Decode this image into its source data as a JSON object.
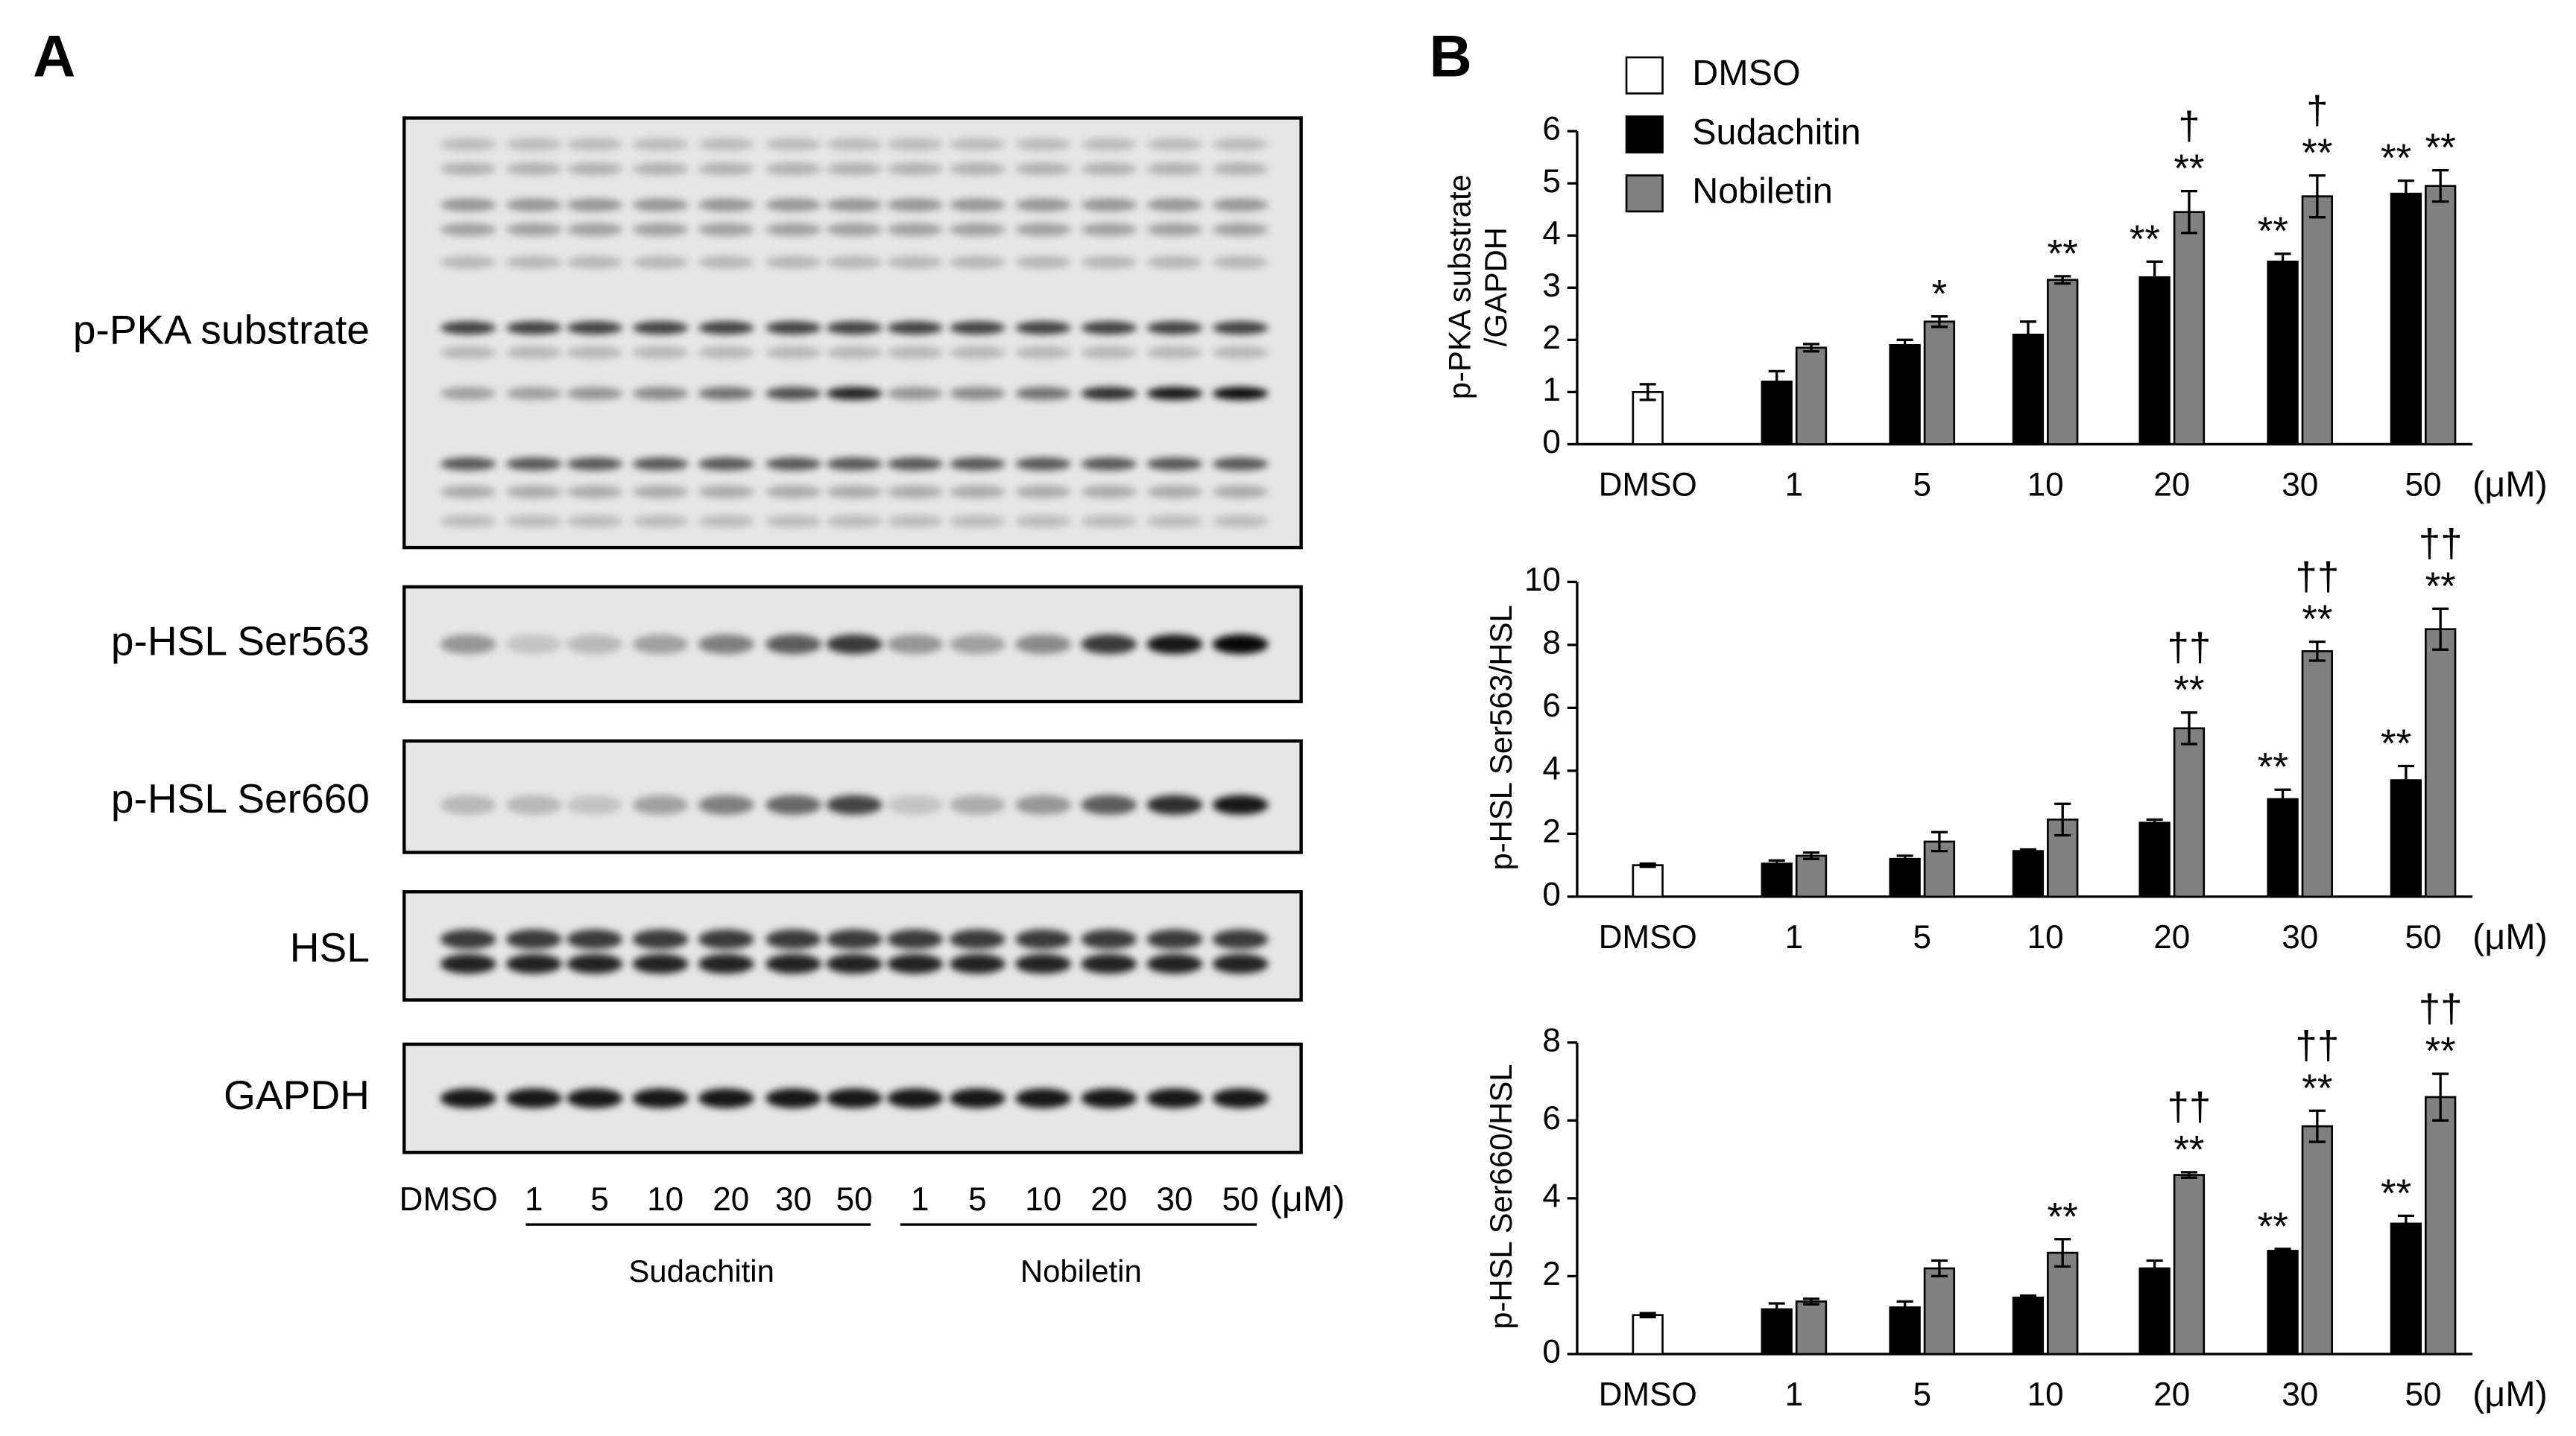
{
  "panel_a": {
    "label": "A",
    "blots": [
      "p-PKA substrate",
      "p-HSL Ser563",
      "p-HSL Ser660",
      "HSL",
      "GAPDH"
    ],
    "lanes": [
      "DMSO",
      "1",
      "5",
      "10",
      "20",
      "30",
      "50",
      "1",
      "5",
      "10",
      "20",
      "30",
      "50"
    ],
    "unit": "(μM)",
    "groups": [
      "Sudachitin",
      "Nobiletin"
    ]
  },
  "panel_b": {
    "label": "B"
  },
  "chart_data": [
    {
      "type": "bar",
      "ylabel": [
        "p-PKA substrate",
        "/GAPDH"
      ],
      "categories": [
        "DMSO",
        "1",
        "5",
        "10",
        "20",
        "30",
        "50"
      ],
      "x_unit": "(μM)",
      "ylim": [
        0,
        6
      ],
      "yticks": [
        0,
        1,
        2,
        3,
        4,
        5,
        6
      ],
      "legend": "top-left",
      "series": [
        {
          "name": "DMSO",
          "color": "#ffffff",
          "values": [
            1.0,
            null,
            null,
            null,
            null,
            null,
            null
          ],
          "errors": [
            0.15,
            null,
            null,
            null,
            null,
            null,
            null
          ],
          "annotations": [
            null,
            null,
            null,
            null,
            null,
            null,
            null
          ]
        },
        {
          "name": "Sudachitin",
          "color": "#000000",
          "values": [
            null,
            1.2,
            1.9,
            2.1,
            3.2,
            3.5,
            4.8
          ],
          "errors": [
            null,
            0.2,
            0.1,
            0.25,
            0.3,
            0.15,
            0.25
          ],
          "annotations": [
            null,
            null,
            null,
            null,
            [
              "**"
            ],
            [
              "**"
            ],
            [
              "**"
            ]
          ]
        },
        {
          "name": "Nobiletin",
          "color": "#808080",
          "values": [
            null,
            1.85,
            2.35,
            3.15,
            4.45,
            4.75,
            4.95
          ],
          "errors": [
            null,
            0.07,
            0.1,
            0.07,
            0.4,
            0.4,
            0.3
          ],
          "annotations": [
            null,
            null,
            [
              "*"
            ],
            [
              "**"
            ],
            [
              "†",
              "**"
            ],
            [
              "†",
              "**"
            ],
            [
              "**"
            ]
          ]
        }
      ]
    },
    {
      "type": "bar",
      "ylabel": [
        "p-HSL  Ser563/HSL"
      ],
      "categories": [
        "DMSO",
        "1",
        "5",
        "10",
        "20",
        "30",
        "50"
      ],
      "x_unit": "(μM)",
      "ylim": [
        0,
        10
      ],
      "yticks": [
        0,
        2,
        4,
        6,
        8,
        10
      ],
      "series": [
        {
          "color": "#ffffff",
          "values": [
            1.0,
            null,
            null,
            null,
            null,
            null,
            null
          ],
          "errors": [
            0.05,
            null,
            null,
            null,
            null,
            null,
            null
          ],
          "annotations": [
            null,
            null,
            null,
            null,
            null,
            null,
            null
          ]
        },
        {
          "color": "#000000",
          "values": [
            null,
            1.05,
            1.2,
            1.45,
            2.35,
            3.1,
            3.7
          ],
          "errors": [
            null,
            0.1,
            0.1,
            0.05,
            0.1,
            0.3,
            0.45
          ],
          "annotations": [
            null,
            null,
            null,
            null,
            null,
            [
              "**"
            ],
            [
              "**"
            ]
          ]
        },
        {
          "color": "#808080",
          "values": [
            null,
            1.3,
            1.75,
            2.45,
            5.35,
            7.8,
            8.5
          ],
          "errors": [
            null,
            0.1,
            0.3,
            0.5,
            0.5,
            0.3,
            0.65
          ],
          "annotations": [
            null,
            null,
            null,
            null,
            [
              "††",
              "**"
            ],
            [
              "††",
              "**"
            ],
            [
              "††",
              "**"
            ]
          ]
        }
      ]
    },
    {
      "type": "bar",
      "ylabel": [
        "p-HSL  Ser660/HSL"
      ],
      "categories": [
        "DMSO",
        "1",
        "5",
        "10",
        "20",
        "30",
        "50"
      ],
      "x_unit": "(μM)",
      "ylim": [
        0,
        8
      ],
      "yticks": [
        0,
        2,
        4,
        6,
        8
      ],
      "series": [
        {
          "color": "#ffffff",
          "values": [
            1.0,
            null,
            null,
            null,
            null,
            null,
            null
          ],
          "errors": [
            0.05,
            null,
            null,
            null,
            null,
            null,
            null
          ],
          "annotations": [
            null,
            null,
            null,
            null,
            null,
            null,
            null
          ]
        },
        {
          "color": "#000000",
          "values": [
            null,
            1.15,
            1.2,
            1.45,
            2.2,
            2.65,
            3.35
          ],
          "errors": [
            null,
            0.15,
            0.15,
            0.05,
            0.2,
            0.05,
            0.2
          ],
          "annotations": [
            null,
            null,
            null,
            null,
            null,
            [
              "**"
            ],
            [
              "**"
            ]
          ]
        },
        {
          "color": "#808080",
          "values": [
            null,
            1.35,
            2.2,
            2.6,
            4.6,
            5.85,
            6.6
          ],
          "errors": [
            null,
            0.07,
            0.2,
            0.35,
            0.07,
            0.4,
            0.6
          ],
          "annotations": [
            null,
            null,
            null,
            [
              "**"
            ],
            [
              "††",
              "**"
            ],
            [
              "††",
              "**"
            ],
            [
              "††",
              "**"
            ]
          ]
        }
      ]
    }
  ]
}
